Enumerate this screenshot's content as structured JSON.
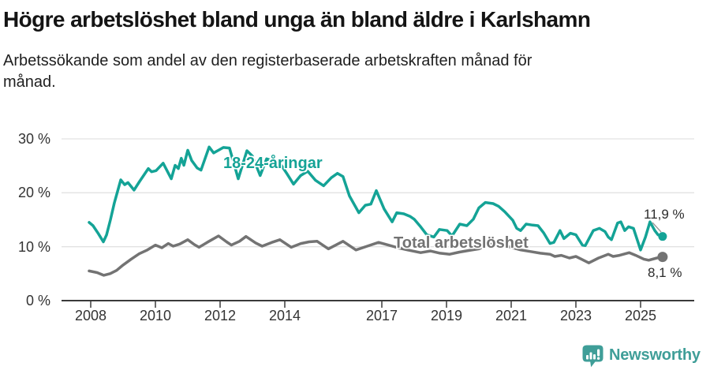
{
  "header": {
    "title": "Högre arbetslöshet bland unga än bland äldre i Karlshamn",
    "subtitle": "Arbetssökande som andel av den registerbaserade arbetskraften månad för månad."
  },
  "footer": {
    "brand": "Newsworthy"
  },
  "colors": {
    "youth_line": "#14A396",
    "total_line": "#737373",
    "logo_teal": "#3F9E98",
    "grid": "#E2E2E2",
    "axis": "#3A3A3A",
    "tick_text": "#333333",
    "leader": "#999999"
  },
  "chart_data": {
    "type": "line",
    "title": "Högre arbetslöshet bland unga än bland äldre i Karlshamn",
    "subtitle": "Arbetssökande som andel av den registerbaserade arbetskraften månad för månad.",
    "unit": "%",
    "legend_position": "inline-labels",
    "x_axis": {
      "tick_years": [
        2008,
        2010,
        2012,
        2014,
        2017,
        2019,
        2021,
        2023,
        2025
      ],
      "tick_labels": [
        "2008",
        "2010",
        "2012",
        "2014",
        "2017",
        "2019",
        "2021",
        "2023",
        "2025"
      ],
      "range": [
        2007.9,
        2026.2
      ]
    },
    "y_axis": {
      "tick_values": [
        0,
        10,
        20,
        30
      ],
      "tick_labels": [
        "0 %",
        "10 %",
        "20 %",
        "30 %"
      ],
      "range": [
        0,
        30
      ],
      "grid": true
    },
    "series": [
      {
        "name": "18-24-åringar",
        "color": "#14A396",
        "end_label": "11,9 %",
        "end_value": 11.9,
        "points": [
          [
            2007.95,
            14.5
          ],
          [
            2008.07,
            13.9
          ],
          [
            2008.24,
            12.4
          ],
          [
            2008.39,
            10.9
          ],
          [
            2008.49,
            12.2
          ],
          [
            2008.61,
            15.0
          ],
          [
            2008.73,
            18.1
          ],
          [
            2008.93,
            22.4
          ],
          [
            2009.05,
            21.5
          ],
          [
            2009.15,
            21.9
          ],
          [
            2009.34,
            20.5
          ],
          [
            2009.51,
            22.1
          ],
          [
            2009.78,
            24.5
          ],
          [
            2009.88,
            23.9
          ],
          [
            2010.02,
            24.1
          ],
          [
            2010.24,
            25.5
          ],
          [
            2010.49,
            22.6
          ],
          [
            2010.61,
            25.1
          ],
          [
            2010.71,
            24.5
          ],
          [
            2010.8,
            26.4
          ],
          [
            2010.88,
            25.1
          ],
          [
            2011.0,
            27.9
          ],
          [
            2011.12,
            26.0
          ],
          [
            2011.29,
            24.6
          ],
          [
            2011.41,
            24.2
          ],
          [
            2011.66,
            28.5
          ],
          [
            2011.8,
            27.4
          ],
          [
            2011.95,
            27.9
          ],
          [
            2012.1,
            28.4
          ],
          [
            2012.29,
            28.3
          ],
          [
            2012.56,
            22.6
          ],
          [
            2012.83,
            27.8
          ],
          [
            2013.0,
            26.8
          ],
          [
            2013.24,
            23.2
          ],
          [
            2013.44,
            26.3
          ],
          [
            2013.68,
            25.8
          ],
          [
            2013.88,
            25.2
          ],
          [
            2014.07,
            23.5
          ],
          [
            2014.27,
            21.6
          ],
          [
            2014.49,
            23.2
          ],
          [
            2014.71,
            24.0
          ],
          [
            2014.95,
            22.3
          ],
          [
            2015.2,
            21.3
          ],
          [
            2015.44,
            22.8
          ],
          [
            2015.63,
            23.6
          ],
          [
            2015.8,
            23.0
          ],
          [
            2016.0,
            19.4
          ],
          [
            2016.29,
            16.3
          ],
          [
            2016.49,
            17.7
          ],
          [
            2016.66,
            17.9
          ],
          [
            2016.83,
            20.4
          ],
          [
            2017.07,
            17.0
          ],
          [
            2017.32,
            14.6
          ],
          [
            2017.46,
            16.3
          ],
          [
            2017.68,
            16.1
          ],
          [
            2017.88,
            15.6
          ],
          [
            2018.0,
            15.1
          ],
          [
            2018.2,
            13.7
          ],
          [
            2018.39,
            12.2
          ],
          [
            2018.61,
            11.8
          ],
          [
            2018.78,
            13.2
          ],
          [
            2019.02,
            13.0
          ],
          [
            2019.17,
            12.0
          ],
          [
            2019.41,
            14.2
          ],
          [
            2019.63,
            13.9
          ],
          [
            2019.83,
            15.1
          ],
          [
            2020.0,
            17.2
          ],
          [
            2020.2,
            18.2
          ],
          [
            2020.44,
            18.0
          ],
          [
            2020.61,
            17.5
          ],
          [
            2020.8,
            16.5
          ],
          [
            2021.05,
            14.9
          ],
          [
            2021.17,
            13.4
          ],
          [
            2021.29,
            13.0
          ],
          [
            2021.46,
            14.2
          ],
          [
            2021.66,
            14.0
          ],
          [
            2021.83,
            13.9
          ],
          [
            2022.0,
            12.6
          ],
          [
            2022.2,
            10.6
          ],
          [
            2022.32,
            10.8
          ],
          [
            2022.51,
            13.0
          ],
          [
            2022.63,
            11.5
          ],
          [
            2022.83,
            12.5
          ],
          [
            2023.0,
            12.2
          ],
          [
            2023.2,
            10.3
          ],
          [
            2023.29,
            10.2
          ],
          [
            2023.54,
            13.0
          ],
          [
            2023.73,
            13.4
          ],
          [
            2023.9,
            12.8
          ],
          [
            2024.0,
            11.8
          ],
          [
            2024.1,
            11.3
          ],
          [
            2024.29,
            14.4
          ],
          [
            2024.39,
            14.6
          ],
          [
            2024.51,
            13.0
          ],
          [
            2024.63,
            13.7
          ],
          [
            2024.78,
            13.4
          ],
          [
            2025.0,
            9.4
          ],
          [
            2025.15,
            11.8
          ],
          [
            2025.29,
            14.6
          ],
          [
            2025.44,
            13.0
          ],
          [
            2025.54,
            12.2
          ],
          [
            2025.68,
            11.9
          ]
        ]
      },
      {
        "name": "Total arbetslöshet",
        "color": "#737373",
        "end_label": "8,1 %",
        "end_value": 8.1,
        "points": [
          [
            2007.95,
            5.5
          ],
          [
            2008.2,
            5.2
          ],
          [
            2008.4,
            4.7
          ],
          [
            2008.6,
            5.0
          ],
          [
            2008.8,
            5.6
          ],
          [
            2009.0,
            6.6
          ],
          [
            2009.25,
            7.7
          ],
          [
            2009.5,
            8.7
          ],
          [
            2009.75,
            9.4
          ],
          [
            2010.0,
            10.3
          ],
          [
            2010.2,
            9.8
          ],
          [
            2010.4,
            10.6
          ],
          [
            2010.55,
            10.1
          ],
          [
            2010.75,
            10.5
          ],
          [
            2011.0,
            11.3
          ],
          [
            2011.2,
            10.4
          ],
          [
            2011.35,
            9.9
          ],
          [
            2011.6,
            10.8
          ],
          [
            2011.95,
            12.0
          ],
          [
            2012.2,
            10.9
          ],
          [
            2012.35,
            10.3
          ],
          [
            2012.6,
            11.0
          ],
          [
            2012.8,
            11.9
          ],
          [
            2013.1,
            10.7
          ],
          [
            2013.3,
            10.1
          ],
          [
            2013.6,
            10.8
          ],
          [
            2013.85,
            11.3
          ],
          [
            2014.2,
            9.9
          ],
          [
            2014.5,
            10.6
          ],
          [
            2014.75,
            10.9
          ],
          [
            2015.0,
            11.0
          ],
          [
            2015.35,
            9.6
          ],
          [
            2015.8,
            11.0
          ],
          [
            2016.2,
            9.4
          ],
          [
            2016.55,
            10.1
          ],
          [
            2016.9,
            10.8
          ],
          [
            2017.2,
            10.3
          ],
          [
            2017.5,
            9.8
          ],
          [
            2017.8,
            9.4
          ],
          [
            2018.2,
            8.9
          ],
          [
            2018.5,
            9.2
          ],
          [
            2018.8,
            8.8
          ],
          [
            2019.1,
            8.6
          ],
          [
            2019.4,
            9.0
          ],
          [
            2019.7,
            9.3
          ],
          [
            2020.0,
            9.6
          ],
          [
            2020.3,
            10.5
          ],
          [
            2020.6,
            10.3
          ],
          [
            2021.0,
            9.9
          ],
          [
            2021.3,
            9.4
          ],
          [
            2021.6,
            9.1
          ],
          [
            2021.9,
            8.8
          ],
          [
            2022.2,
            8.6
          ],
          [
            2022.35,
            8.2
          ],
          [
            2022.55,
            8.4
          ],
          [
            2022.8,
            7.9
          ],
          [
            2023.0,
            8.2
          ],
          [
            2023.2,
            7.6
          ],
          [
            2023.4,
            7.0
          ],
          [
            2023.7,
            7.9
          ],
          [
            2024.0,
            8.6
          ],
          [
            2024.15,
            8.2
          ],
          [
            2024.35,
            8.4
          ],
          [
            2024.65,
            8.9
          ],
          [
            2024.85,
            8.4
          ],
          [
            2025.1,
            7.7
          ],
          [
            2025.25,
            7.5
          ],
          [
            2025.5,
            7.9
          ],
          [
            2025.68,
            8.1
          ]
        ]
      }
    ]
  }
}
